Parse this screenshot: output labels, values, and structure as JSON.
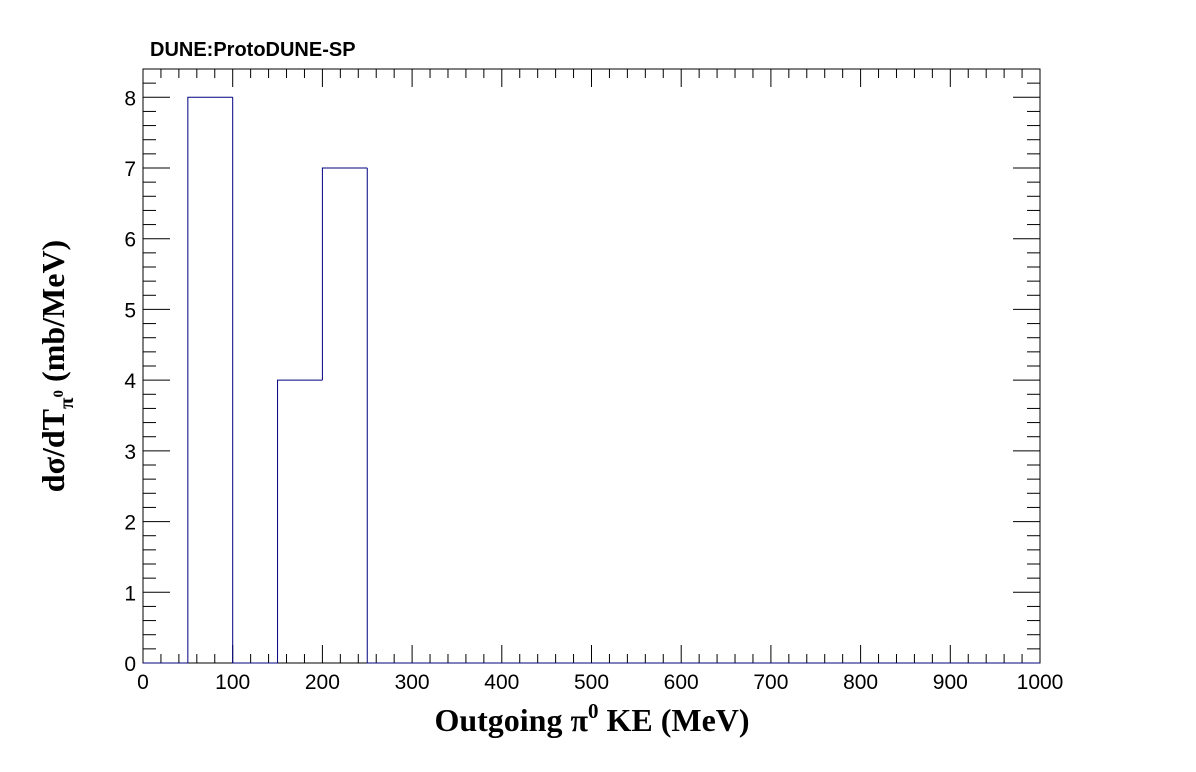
{
  "chart_data": {
    "type": "bar",
    "title": "DUNE:ProtoDUNE-SP",
    "xlabel": {
      "pre": "Outgoing  π",
      "sup": "0",
      "post": " KE (MeV)"
    },
    "ylabel": {
      "pre": "dσ/dT",
      "sub": "π",
      "subsup": "0",
      "post": " (mb/MeV)"
    },
    "xlim": [
      0,
      1000
    ],
    "ylim": [
      0,
      8.4
    ],
    "x_ticks": [
      "0",
      "100",
      "200",
      "300",
      "400",
      "500",
      "600",
      "700",
      "800",
      "900",
      "1000"
    ],
    "y_ticks": [
      "0",
      "1",
      "2",
      "3",
      "4",
      "5",
      "6",
      "7",
      "8"
    ],
    "bin_edges": [
      0,
      50,
      100,
      150,
      200,
      250,
      300,
      350,
      400,
      450,
      500,
      550,
      600,
      650,
      700,
      750,
      800,
      850,
      900,
      950,
      1000
    ],
    "values": [
      0,
      8,
      0,
      4,
      7,
      0,
      0,
      0,
      0,
      0,
      0,
      0,
      0,
      0,
      0,
      0,
      0,
      0,
      0,
      0
    ],
    "grid": false,
    "line_color": "#00007f",
    "frame_color": "#000000"
  }
}
